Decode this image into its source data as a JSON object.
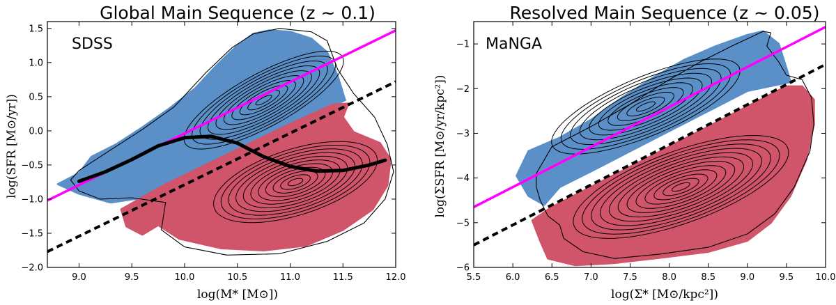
{
  "colors": {
    "star_forming": "#5b8fc7",
    "quiescent": "#d0546a",
    "ms_fit": "#ff00ff",
    "separator": "#000000",
    "running_median": "#000000",
    "contour": "#000000",
    "green_valley_tint": "#e8dca0"
  },
  "chart_data": [
    {
      "id": "global",
      "type": "scatter",
      "title": "Global Main Sequence (z ~ 0.1)",
      "annotation": "SDSS",
      "xlabel": "log(M* [M⊙])",
      "ylabel": "log(SFR [M⊙/yr])",
      "xlim": [
        8.7,
        12.0
      ],
      "ylim": [
        -2.0,
        1.6
      ],
      "xticks": [
        9.0,
        9.5,
        10.0,
        10.5,
        11.0,
        11.5,
        12.0
      ],
      "xtick_labels": [
        "9.0",
        "9.5",
        "10.0",
        "10.5",
        "11.0",
        "11.5",
        "12.0"
      ],
      "yticks": [
        -2.0,
        -1.5,
        -1.0,
        -0.5,
        0.0,
        0.5,
        1.0,
        1.5
      ],
      "ytick_labels": [
        "−2.0",
        "−1.5",
        "−1.0",
        "−0.5",
        "0.0",
        "0.5",
        "1.0",
        "1.5"
      ],
      "series": [
        {
          "name": "main sequence fit",
          "style": "solid-magenta",
          "x": [
            8.7,
            12.0
          ],
          "y": [
            -1.02,
            1.47
          ]
        },
        {
          "name": "SF / quiescent separator",
          "style": "dashed-black",
          "x": [
            8.7,
            12.0
          ],
          "y": [
            -1.77,
            0.72
          ]
        },
        {
          "name": "running median",
          "style": "thick-black",
          "x": [
            9.0,
            9.25,
            9.5,
            9.75,
            10.0,
            10.25,
            10.5,
            10.75,
            11.0,
            11.25,
            11.5,
            11.75,
            11.9
          ],
          "y": [
            -0.74,
            -0.6,
            -0.42,
            -0.22,
            -0.1,
            -0.08,
            -0.18,
            -0.38,
            -0.52,
            -0.59,
            -0.58,
            -0.5,
            -0.43
          ]
        }
      ],
      "star_forming_cloud": [
        [
          9.0,
          -0.62
        ],
        [
          9.12,
          -0.38
        ],
        [
          9.35,
          -0.2
        ],
        [
          9.6,
          0.05
        ],
        [
          9.85,
          0.32
        ],
        [
          10.1,
          0.62
        ],
        [
          10.3,
          0.95
        ],
        [
          10.5,
          1.25
        ],
        [
          10.65,
          1.42
        ],
        [
          10.8,
          1.47
        ],
        [
          11.0,
          1.45
        ],
        [
          11.2,
          1.35
        ],
        [
          11.35,
          1.15
        ],
        [
          11.45,
          0.8
        ],
        [
          11.52,
          0.45
        ],
        [
          11.2,
          0.22
        ],
        [
          10.8,
          -0.08
        ],
        [
          10.4,
          -0.38
        ],
        [
          10.0,
          -0.68
        ],
        [
          9.6,
          -0.98
        ],
        [
          9.3,
          -1.05
        ],
        [
          9.0,
          -0.92
        ],
        [
          8.8,
          -0.78
        ]
      ],
      "quiescent_cloud": [
        [
          9.4,
          -1.15
        ],
        [
          9.8,
          -0.8
        ],
        [
          10.2,
          -0.5
        ],
        [
          10.6,
          -0.2
        ],
        [
          11.0,
          0.1
        ],
        [
          11.4,
          0.38
        ],
        [
          11.55,
          0.4
        ],
        [
          11.5,
          0.2
        ],
        [
          11.6,
          -0.02
        ],
        [
          11.85,
          -0.18
        ],
        [
          11.95,
          -0.42
        ],
        [
          11.92,
          -0.8
        ],
        [
          11.78,
          -1.15
        ],
        [
          11.5,
          -1.45
        ],
        [
          11.15,
          -1.68
        ],
        [
          10.75,
          -1.75
        ],
        [
          10.35,
          -1.72
        ],
        [
          9.95,
          -1.58
        ],
        [
          9.75,
          -1.38
        ],
        [
          9.6,
          -1.52
        ],
        [
          9.45,
          -1.4
        ]
      ],
      "contours": [
        {
          "cx": 10.75,
          "cy": 0.45,
          "a": 0.95,
          "b": 0.32,
          "rot": 40,
          "levels": 10
        },
        {
          "cx": 11.05,
          "cy": -0.75,
          "a": 0.85,
          "b": 0.42,
          "rot": 28,
          "levels": 11
        }
      ],
      "outer_contour": [
        [
          9.0,
          -0.58
        ],
        [
          9.3,
          -0.28
        ],
        [
          9.6,
          0.02
        ],
        [
          9.9,
          0.35
        ],
        [
          10.2,
          0.85
        ],
        [
          10.45,
          1.22
        ],
        [
          10.65,
          1.42
        ],
        [
          10.9,
          1.5
        ],
        [
          11.2,
          1.45
        ],
        [
          11.35,
          1.32
        ],
        [
          11.45,
          0.9
        ],
        [
          11.6,
          0.55
        ],
        [
          11.8,
          0.2
        ],
        [
          11.92,
          -0.2
        ],
        [
          11.98,
          -0.6
        ],
        [
          11.9,
          -1.0
        ],
        [
          11.7,
          -1.35
        ],
        [
          11.35,
          -1.62
        ],
        [
          10.9,
          -1.8
        ],
        [
          10.4,
          -1.82
        ],
        [
          10.0,
          -1.7
        ],
        [
          9.78,
          -1.45
        ],
        [
          9.82,
          -1.05
        ],
        [
          9.5,
          -0.98
        ],
        [
          9.2,
          -1.0
        ],
        [
          9.0,
          -0.88
        ],
        [
          8.92,
          -0.72
        ]
      ]
    },
    {
      "id": "resolved",
      "type": "scatter",
      "title": "Resolved Main Sequence (z ~ 0.05)",
      "annotation": "MaNGA",
      "xlabel": "log(Σ* [M⊙/kpc²])",
      "ylabel": "log(ΣSFR [M⊙/yr/kpc²])",
      "xlim": [
        5.5,
        10.0
      ],
      "ylim": [
        -6.0,
        -0.5
      ],
      "xticks": [
        5.5,
        6.0,
        6.5,
        7.0,
        7.5,
        8.0,
        8.5,
        9.0,
        9.5,
        10.0
      ],
      "xtick_labels": [
        "5.5",
        "6.0",
        "6.5",
        "7.0",
        "7.5",
        "8.0",
        "8.5",
        "9.0",
        "9.5",
        "10.0"
      ],
      "yticks": [
        -6,
        -5,
        -4,
        -3,
        -2,
        -1
      ],
      "ytick_labels": [
        "−6",
        "−5",
        "−4",
        "−3",
        "−2",
        "−1"
      ],
      "series": [
        {
          "name": "main sequence fit",
          "style": "solid-magenta",
          "x": [
            5.5,
            10.0
          ],
          "y": [
            -4.65,
            -0.62
          ]
        },
        {
          "name": "SF / quiescent separator",
          "style": "dashed-black",
          "x": [
            5.5,
            10.0
          ],
          "y": [
            -5.5,
            -1.46
          ]
        }
      ],
      "star_forming_cloud": [
        [
          6.05,
          -3.95
        ],
        [
          6.2,
          -3.4
        ],
        [
          6.6,
          -3.1
        ],
        [
          7.0,
          -2.7
        ],
        [
          7.4,
          -2.2
        ],
        [
          7.8,
          -1.75
        ],
        [
          8.2,
          -1.35
        ],
        [
          8.6,
          -1.05
        ],
        [
          9.0,
          -0.8
        ],
        [
          9.2,
          -0.72
        ],
        [
          9.4,
          -1.0
        ],
        [
          9.5,
          -1.55
        ],
        [
          9.55,
          -1.85
        ],
        [
          9.0,
          -2.05
        ],
        [
          8.5,
          -2.5
        ],
        [
          8.0,
          -2.95
        ],
        [
          7.5,
          -3.4
        ],
        [
          7.0,
          -3.85
        ],
        [
          6.6,
          -4.2
        ],
        [
          6.4,
          -4.6
        ],
        [
          6.2,
          -4.4
        ]
      ],
      "quiescent_cloud": [
        [
          6.5,
          -4.65
        ],
        [
          7.0,
          -4.2
        ],
        [
          7.5,
          -3.75
        ],
        [
          8.0,
          -3.3
        ],
        [
          8.5,
          -2.85
        ],
        [
          9.0,
          -2.4
        ],
        [
          9.5,
          -1.95
        ],
        [
          9.7,
          -1.95
        ],
        [
          9.85,
          -2.25
        ],
        [
          9.85,
          -2.8
        ],
        [
          9.75,
          -3.6
        ],
        [
          9.55,
          -4.4
        ],
        [
          9.3,
          -5.0
        ],
        [
          9.0,
          -5.4
        ],
        [
          8.5,
          -5.65
        ],
        [
          7.9,
          -5.78
        ],
        [
          7.3,
          -5.9
        ],
        [
          6.8,
          -5.95
        ],
        [
          6.45,
          -5.8
        ],
        [
          6.35,
          -5.4
        ],
        [
          6.25,
          -4.95
        ]
      ],
      "contours": [
        {
          "cx": 7.7,
          "cy": -2.4,
          "a": 1.4,
          "b": 0.5,
          "rot": 33,
          "levels": 10
        },
        {
          "cx": 8.15,
          "cy": -4.2,
          "a": 1.55,
          "b": 0.62,
          "rot": 30,
          "levels": 12
        }
      ],
      "outer_contour": [
        [
          6.3,
          -3.9
        ],
        [
          6.5,
          -3.3
        ],
        [
          7.0,
          -2.85
        ],
        [
          7.5,
          -2.35
        ],
        [
          8.0,
          -1.8
        ],
        [
          8.4,
          -1.4
        ],
        [
          8.8,
          -1.05
        ],
        [
          9.2,
          -0.72
        ],
        [
          9.3,
          -0.75
        ],
        [
          9.25,
          -1.05
        ],
        [
          9.4,
          -1.4
        ],
        [
          9.5,
          -1.7
        ],
        [
          9.7,
          -1.8
        ],
        [
          9.82,
          -2.2
        ],
        [
          9.85,
          -2.8
        ],
        [
          9.8,
          -3.4
        ],
        [
          9.6,
          -4.2
        ],
        [
          9.35,
          -4.8
        ],
        [
          9.0,
          -5.25
        ],
        [
          8.5,
          -5.55
        ],
        [
          7.9,
          -5.7
        ],
        [
          7.3,
          -5.8
        ],
        [
          6.9,
          -5.65
        ],
        [
          6.65,
          -5.35
        ],
        [
          6.6,
          -5.05
        ],
        [
          6.45,
          -4.85
        ],
        [
          6.35,
          -4.5
        ],
        [
          6.3,
          -4.2
        ]
      ]
    }
  ]
}
